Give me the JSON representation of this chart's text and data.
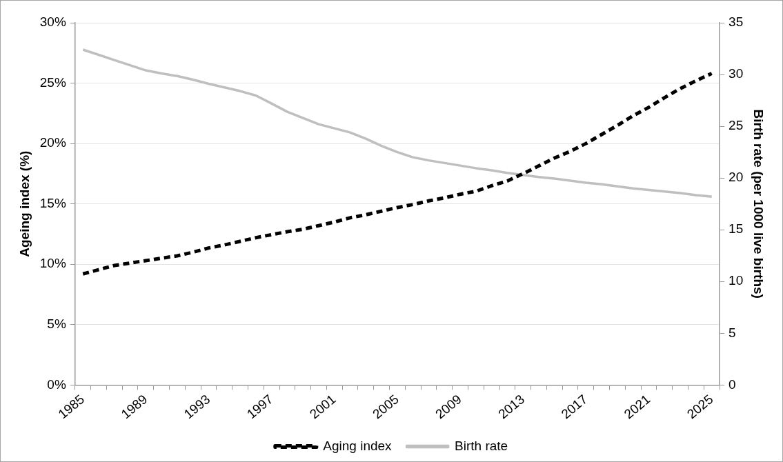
{
  "chart_data": {
    "type": "line",
    "categories": [
      "1985",
      null,
      null,
      null,
      "1989",
      null,
      null,
      null,
      "1993",
      null,
      null,
      null,
      "1997",
      null,
      null,
      null,
      "2001",
      null,
      null,
      null,
      "2005",
      null,
      null,
      null,
      "2009",
      null,
      null,
      null,
      "2013",
      null,
      null,
      null,
      "2017",
      null,
      null,
      null,
      "2021",
      null,
      null,
      null,
      "2025"
    ],
    "series": [
      {
        "name": "Aging index",
        "color": "#000000",
        "line_style": "dashed",
        "values": [
          9.2,
          9.55,
          9.9,
          10.1,
          10.3,
          10.5,
          10.7,
          11.0,
          11.35,
          11.6,
          11.9,
          12.2,
          12.45,
          12.7,
          12.9,
          13.2,
          13.5,
          13.85,
          14.1,
          14.4,
          14.7,
          14.95,
          15.25,
          15.5,
          15.8,
          16.05,
          16.5,
          16.9,
          17.5,
          18.15,
          18.8,
          19.35,
          20.0,
          20.75,
          21.5,
          22.3,
          23.0,
          23.8,
          24.55,
          25.2,
          25.8
        ]
      },
      {
        "name": "Birth rate",
        "color": "#bfbfbf",
        "line_style": "solid",
        "axis": "y2",
        "values": [
          32.4,
          31.9,
          31.4,
          30.9,
          30.4,
          30.1,
          29.85,
          29.5,
          29.1,
          28.75,
          28.4,
          27.97,
          27.2,
          26.4,
          25.8,
          25.2,
          24.8,
          24.4,
          23.8,
          23.1,
          22.5,
          22.0,
          21.7,
          21.45,
          21.2,
          20.95,
          20.75,
          20.5,
          20.3,
          20.1,
          19.95,
          19.75,
          19.55,
          19.4,
          19.2,
          19.0,
          18.85,
          18.7,
          18.55,
          18.35,
          18.2
        ]
      }
    ],
    "ylabel": "Ageing index (%)",
    "y2label": "Birth rate (per 1000 live births)",
    "ylim": [
      0,
      30
    ],
    "yticks": [
      {
        "value": 0,
        "label": "0%"
      },
      {
        "value": 5,
        "label": "5%"
      },
      {
        "value": 10,
        "label": "10%"
      },
      {
        "value": 15,
        "label": "15%"
      },
      {
        "value": 20,
        "label": "20%"
      },
      {
        "value": 25,
        "label": "25%"
      },
      {
        "value": 30,
        "label": "30%"
      }
    ],
    "y2lim": [
      0,
      35
    ],
    "y2ticks": [
      0,
      5,
      10,
      15,
      20,
      25,
      30,
      35
    ],
    "grid": "y",
    "legend": "bottom",
    "marker": "none"
  }
}
